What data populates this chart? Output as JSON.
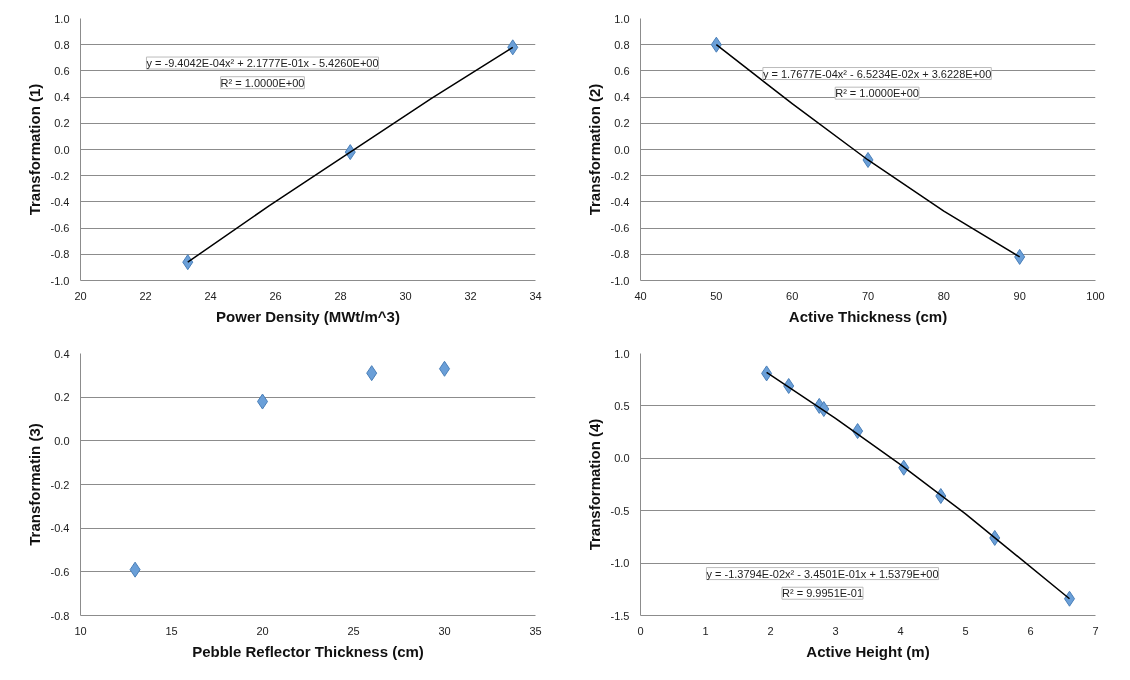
{
  "chart_data": [
    {
      "type": "scatter",
      "xlabel": "Power Density (MWt/m^3)",
      "ylabel": "Transformation (1)",
      "xlim": [
        20,
        34
      ],
      "xticks": [
        20,
        22,
        24,
        26,
        28,
        30,
        32,
        34
      ],
      "ylim": [
        -1.0,
        1.0
      ],
      "yticks": [
        {
          "value": -1.0,
          "label": "-1.0"
        },
        {
          "value": -0.8,
          "label": "-0.8"
        },
        {
          "value": -0.6,
          "label": "-0.6"
        },
        {
          "value": -0.4,
          "label": "-0.4"
        },
        {
          "value": -0.2,
          "label": "-0.2"
        },
        {
          "value": 0,
          "label": "0.0"
        },
        {
          "value": 0.2,
          "label": "0.2"
        },
        {
          "value": 0.4,
          "label": "0.4"
        },
        {
          "value": 0.6,
          "label": "0.6"
        },
        {
          "value": 0.8,
          "label": "0.8"
        },
        {
          "value": 1.0,
          "label": "1.0"
        }
      ],
      "grid": "y",
      "marker": "diamond",
      "series": [
        {
          "color": "#6a9fd8",
          "x": [
            23.3,
            28.3,
            33.3
          ],
          "values": [
            -0.86,
            -0.02,
            0.78
          ]
        },
        {
          "type": "line",
          "marker": "none",
          "color": "#000000",
          "x": [
            23.3,
            25.8,
            28.3,
            30.8,
            33.3
          ],
          "values": [
            -0.86,
            -0.43,
            -0.02,
            0.39,
            0.78
          ]
        }
      ],
      "annotations": [
        "y = -9.4042E-04x² + 2.1777E-01x - 5.4260E+00",
        "R² = 1.0000E+00"
      ]
    },
    {
      "type": "scatter",
      "xlabel": "Active Thickness (cm)",
      "ylabel": "Transformation (2)",
      "xlim": [
        40,
        100
      ],
      "xticks": [
        40,
        50,
        60,
        70,
        80,
        90,
        100
      ],
      "ylim": [
        -1.0,
        1.0
      ],
      "yticks": [
        {
          "value": -1.0,
          "label": "-1.0"
        },
        {
          "value": -0.8,
          "label": "-0.8"
        },
        {
          "value": -0.6,
          "label": "-0.6"
        },
        {
          "value": -0.4,
          "label": "-0.4"
        },
        {
          "value": -0.2,
          "label": "-0.2"
        },
        {
          "value": 0,
          "label": "0.0"
        },
        {
          "value": 0.2,
          "label": "0.2"
        },
        {
          "value": 0.4,
          "label": "0.4"
        },
        {
          "value": 0.6,
          "label": "0.6"
        },
        {
          "value": 0.8,
          "label": "0.8"
        },
        {
          "value": 1.0,
          "label": "1.0"
        }
      ],
      "grid": "y",
      "marker": "diamond",
      "series": [
        {
          "color": "#6a9fd8",
          "x": [
            50,
            70,
            90
          ],
          "values": [
            0.8,
            -0.08,
            -0.82
          ]
        },
        {
          "type": "line",
          "marker": "none",
          "color": "#000000",
          "x": [
            50,
            60,
            70,
            80,
            90
          ],
          "values": [
            0.8,
            0.35,
            -0.08,
            -0.47,
            -0.82
          ]
        }
      ],
      "annotations": [
        "y = 1.7677E-04x² - 6.5234E-02x + 3.6228E+00",
        "R² = 1.0000E+00"
      ]
    },
    {
      "type": "scatter",
      "xlabel": "Pebble Reflector Thickness (cm)",
      "ylabel": "Transformatin (3)",
      "xlim": [
        10,
        35
      ],
      "xticks": [
        10,
        15,
        20,
        25,
        30,
        35
      ],
      "ylim": [
        -0.8,
        0.4
      ],
      "yticks": [
        {
          "value": -0.8,
          "label": "-0.8"
        },
        {
          "value": -0.6,
          "label": "-0.6"
        },
        {
          "value": -0.4,
          "label": "-0.4"
        },
        {
          "value": -0.2,
          "label": "-0.2"
        },
        {
          "value": 0,
          "label": "0.0"
        },
        {
          "value": 0.2,
          "label": "0.2"
        },
        {
          "value": 0.4,
          "label": "0.4"
        }
      ],
      "grid": "y",
      "marker": "diamond",
      "series": [
        {
          "color": "#6a9fd8",
          "x": [
            13,
            20,
            26,
            30
          ],
          "values": [
            -0.59,
            0.18,
            0.31,
            0.33
          ]
        }
      ]
    },
    {
      "type": "scatter",
      "xlabel": "Active Height (m)",
      "ylabel": "Transformation (4)",
      "xlim": [
        0,
        7
      ],
      "xticks": [
        0,
        1,
        2,
        3,
        4,
        5,
        6,
        7
      ],
      "ylim": [
        -1.5,
        1.0
      ],
      "yticks": [
        {
          "value": -1.5,
          "label": "-1.5"
        },
        {
          "value": -1.0,
          "label": "-1.0"
        },
        {
          "value": -0.5,
          "label": "-0.5"
        },
        {
          "value": 0,
          "label": "0.0"
        },
        {
          "value": 0.5,
          "label": "0.5"
        },
        {
          "value": 1.0,
          "label": "1.0"
        }
      ],
      "grid": "y",
      "marker": "diamond",
      "series": [
        {
          "color": "#6a9fd8",
          "x": [
            1.94,
            2.28,
            2.75,
            2.82,
            3.34,
            4.05,
            4.62,
            5.45,
            6.6
          ],
          "values": [
            0.81,
            0.69,
            0.5,
            0.47,
            0.26,
            -0.09,
            -0.36,
            -0.76,
            -1.34
          ]
        },
        {
          "type": "line",
          "marker": "none",
          "color": "#000000",
          "x": [
            1.94,
            3,
            4,
            5,
            6.6
          ],
          "values": [
            0.82,
            0.38,
            -0.06,
            -0.53,
            -1.34
          ]
        }
      ],
      "annotations": [
        "y = -1.3794E-02x² - 3.4501E-01x + 1.5379E+00",
        "R² = 9.9951E-01"
      ]
    }
  ]
}
